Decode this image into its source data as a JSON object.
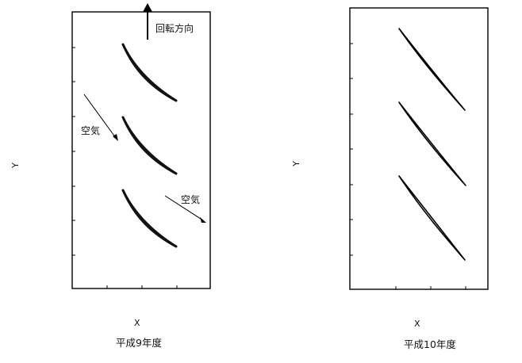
{
  "panels": [
    {
      "id": "left",
      "x_label": "X",
      "y_label": "Y",
      "caption": "平成9年度",
      "annotations": {
        "rotation": "回転方向",
        "air_1": "空気",
        "air_2": "空気"
      },
      "blade_count": 3
    },
    {
      "id": "right",
      "x_label": "X",
      "y_label": "Y",
      "caption": "平成10年度",
      "blade_count": 3
    }
  ]
}
